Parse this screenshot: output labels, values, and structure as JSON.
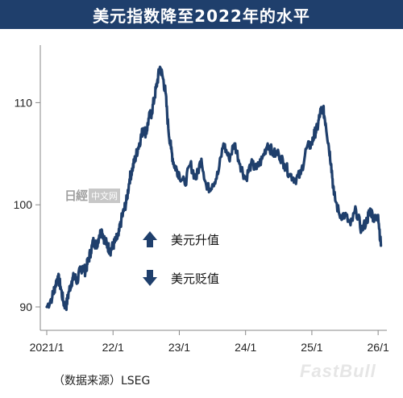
{
  "header": {
    "title": "美元指数降至2022年的水平"
  },
  "legend": {
    "up_label": "美元升值",
    "down_label": "美元贬值"
  },
  "source": {
    "text": "（数据来源）LSEG"
  },
  "watermarks": {
    "left_stamp": "日經",
    "left_badge": "中文网",
    "right_text": "FastBull"
  },
  "colors": {
    "line": "#1f3f6c",
    "title_bg": "#1f3f6c",
    "axis": "#888888"
  },
  "icons": {
    "up": "arrow-up-icon",
    "down": "arrow-down-icon"
  },
  "chart_data": {
    "type": "line",
    "title": "美元指数降至2022年的水平",
    "xlabel": "",
    "ylabel": "",
    "x_ticks": [
      "2021/1",
      "22/1",
      "23/1",
      "24/1",
      "25/1",
      "26/1"
    ],
    "x_tick_values": [
      0,
      12,
      24,
      36,
      48,
      60
    ],
    "y_ticks": [
      90,
      100,
      110
    ],
    "xlim": [
      0,
      61
    ],
    "ylim": [
      88.5,
      115
    ],
    "grid": false,
    "series": [
      {
        "name": "",
        "x": [
          0,
          1,
          1.5,
          2,
          2.5,
          3,
          3.5,
          4,
          4.5,
          5,
          5.5,
          6,
          6.5,
          7,
          7.5,
          8,
          8.5,
          9,
          9.5,
          10,
          10.5,
          11,
          11.5,
          12,
          12.5,
          13,
          13.5,
          14,
          14.5,
          15,
          15.5,
          16,
          16.5,
          17,
          17.5,
          18,
          18.5,
          19,
          19.5,
          20,
          20.5,
          21,
          21.5,
          22,
          22.5,
          23,
          23.5,
          24,
          25,
          26,
          27,
          28,
          29,
          30,
          31,
          32,
          33,
          34,
          35,
          36,
          37,
          38,
          39,
          40,
          41,
          42,
          43,
          44,
          45,
          46,
          47,
          48,
          48.5,
          49,
          49.5,
          50,
          50.5,
          51,
          51.5,
          52,
          53,
          54,
          55,
          56,
          57,
          58,
          58.5,
          59,
          59.5,
          60,
          60.5
        ],
        "values": [
          90,
          91,
          92,
          93,
          92,
          90.5,
          90,
          91.5,
          92.5,
          93,
          92.5,
          93.5,
          94,
          93.5,
          94.5,
          95.5,
          96.5,
          96,
          97,
          97.5,
          96.5,
          96,
          95.5,
          96,
          96.5,
          97,
          98.5,
          99.5,
          100.5,
          102.5,
          103.5,
          104.5,
          105.5,
          106.5,
          107.5,
          107,
          108.5,
          109,
          110.5,
          112,
          113.5,
          112.5,
          111,
          107.5,
          105.5,
          104,
          103.5,
          103,
          102,
          104,
          102.5,
          104.5,
          101.5,
          102,
          103,
          106,
          104.5,
          106,
          104,
          102.5,
          104,
          103.5,
          104.5,
          106,
          105,
          105,
          104,
          103,
          102.5,
          103,
          105.5,
          106,
          107,
          107.5,
          109,
          109.5,
          108,
          106,
          104,
          101,
          99,
          99,
          98,
          99.5,
          97.5,
          98.5,
          99.5,
          99,
          98.5,
          99,
          96
        ]
      }
    ]
  }
}
